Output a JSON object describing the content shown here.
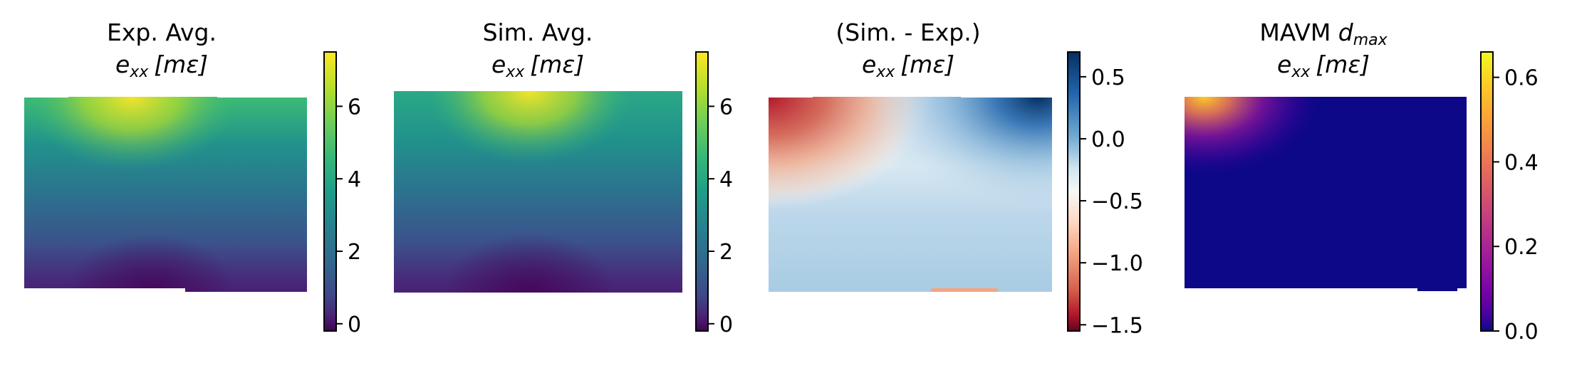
{
  "chart_data": [
    {
      "type": "heatmap",
      "title_line1": "Exp. Avg.",
      "title_line2": {
        "var": "e",
        "sub": "xx",
        "unit": "[mε]"
      },
      "colormap": "viridis",
      "colorbar": {
        "min": -0.2,
        "max": 7.5,
        "ticks": [
          0,
          2,
          4,
          6
        ],
        "tick_labels": [
          "0",
          "2",
          "4",
          "6"
        ]
      },
      "field": {
        "peak_value": 7.2,
        "peak_location": "top-center",
        "low_value": -0.1,
        "low_location": "bottom-center"
      }
    },
    {
      "type": "heatmap",
      "title_line1": "Sim. Avg.",
      "title_line2": {
        "var": "e",
        "sub": "xx",
        "unit": "[mε]"
      },
      "colormap": "viridis",
      "colorbar": {
        "min": -0.2,
        "max": 7.5,
        "ticks": [
          0,
          2,
          4,
          6
        ],
        "tick_labels": [
          "0",
          "2",
          "4",
          "6"
        ]
      },
      "field": {
        "peak_value": 7.0,
        "peak_location": "top-center",
        "low_value": -0.1,
        "low_location": "bottom-center"
      }
    },
    {
      "type": "heatmap",
      "title_line1": "(Sim. - Exp.)",
      "title_line2": {
        "var": "e",
        "sub": "xx",
        "unit": "[mε]"
      },
      "colormap": "RdBu",
      "colorbar": {
        "min": -1.55,
        "max": 0.7,
        "ticks": [
          0.5,
          0.0,
          -0.5,
          -1.0,
          -1.5
        ],
        "tick_labels": [
          "0.5",
          "0.0",
          "−0.5",
          "−1.0",
          "−1.5"
        ]
      },
      "field": {
        "peak_value": 0.6,
        "peak_location": "top-right",
        "low_value": -1.5,
        "low_location": "top-left"
      }
    },
    {
      "type": "heatmap",
      "title_line1": "MAVM ",
      "title_line1_italic": "d",
      "title_line1_sub": "max",
      "title_line2": {
        "var": "e",
        "sub": "xx",
        "unit": "[mε]"
      },
      "colormap": "plasma",
      "colorbar": {
        "min": 0.0,
        "max": 0.66,
        "ticks": [
          0.6,
          0.4,
          0.2,
          0.0
        ],
        "tick_labels": [
          "0.6",
          "0.4",
          "0.2",
          "0.0"
        ]
      },
      "field": {
        "peak_value": 0.62,
        "peak_location": "top-left",
        "low_value": 0.0,
        "low_location": "elsewhere"
      }
    }
  ]
}
